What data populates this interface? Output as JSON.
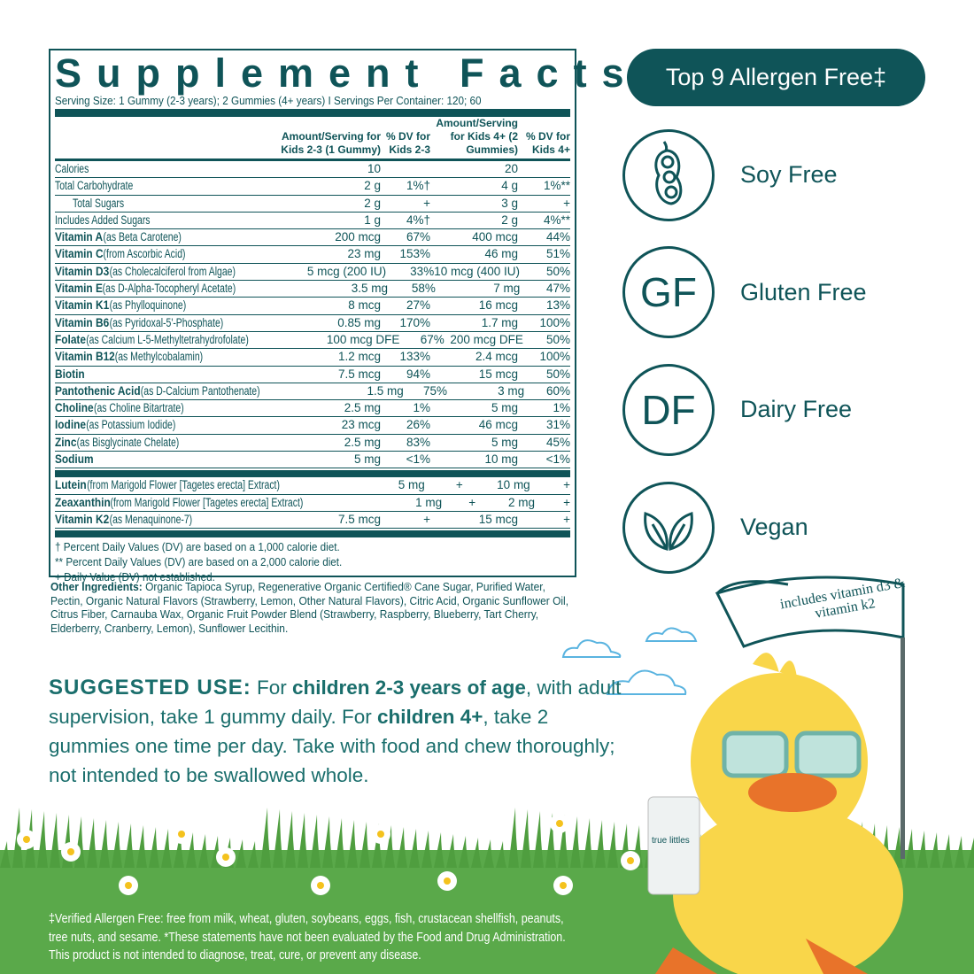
{
  "facts": {
    "title": "Supplement Facts",
    "serving": "Serving Size: 1 Gummy (2-3 years); 2 Gummies (4+ years)  I Servings Per Container: 120; 60",
    "headers": [
      "Amount/Serving for Kids 2-3 (1 Gummy)",
      "% DV for Kids 2-3",
      "Amount/Serving for Kids 4+ (2 Gummies)",
      "% DV for Kids 4+"
    ],
    "rows": [
      {
        "bold": "",
        "name": "Calories",
        "a1": "10",
        "d1": "",
        "a2": "20",
        "d2": ""
      },
      {
        "bold": "",
        "name": "Total Carbohydrate",
        "a1": "2 g",
        "d1": "1%†",
        "a2": "4 g",
        "d2": "1%**"
      },
      {
        "bold": "",
        "name": "Total Sugars",
        "a1": "2 g",
        "d1": "+",
        "a2": "3 g",
        "d2": "+"
      },
      {
        "bold": "",
        "name": "Includes Added Sugars",
        "a1": "1 g",
        "d1": "4%†",
        "a2": "2 g",
        "d2": "4%**"
      },
      {
        "bold": "Vitamin A",
        "name": " (as Beta Carotene)",
        "a1": "200 mcg",
        "d1": "67%",
        "a2": "400 mcg",
        "d2": "44%"
      },
      {
        "bold": "Vitamin C",
        "name": " (from Ascorbic Acid)",
        "a1": "23 mg",
        "d1": "153%",
        "a2": "46 mg",
        "d2": "51%"
      },
      {
        "bold": "Vitamin D3",
        "name": " (as Cholecalciferol from Algae)",
        "a1": "5 mcg (200 IU)",
        "d1": "33%",
        "a2": "10 mcg (400 IU)",
        "d2": "50%"
      },
      {
        "bold": "Vitamin E",
        "name": " (as D-Alpha-Tocopheryl Acetate)",
        "a1": "3.5 mg",
        "d1": "58%",
        "a2": "7 mg",
        "d2": "47%"
      },
      {
        "bold": "Vitamin K1",
        "name": " (as Phylloquinone)",
        "a1": "8 mcg",
        "d1": "27%",
        "a2": "16 mcg",
        "d2": "13%"
      },
      {
        "bold": "Vitamin B6",
        "name": " (as Pyridoxal-5'-Phosphate)",
        "a1": "0.85 mg",
        "d1": "170%",
        "a2": "1.7 mg",
        "d2": "100%"
      },
      {
        "bold": "Folate",
        "name": " (as Calcium L-5-Methyltetrahydrofolate)",
        "a1": "100 mcg DFE",
        "d1": "67%",
        "a2": "200 mcg DFE",
        "d2": "50%"
      },
      {
        "bold": "Vitamin B12",
        "name": " (as Methylcobalamin)",
        "a1": "1.2 mcg",
        "d1": "133%",
        "a2": "2.4 mcg",
        "d2": "100%"
      },
      {
        "bold": "Biotin",
        "name": "",
        "a1": "7.5 mcg",
        "d1": "94%",
        "a2": "15 mcg",
        "d2": "50%"
      },
      {
        "bold": "Pantothenic Acid",
        "name": " (as D-Calcium Pantothenate)",
        "a1": "1.5 mg",
        "d1": "75%",
        "a2": "3 mg",
        "d2": "60%"
      },
      {
        "bold": "Choline",
        "name": " (as Choline Bitartrate)",
        "a1": "2.5 mg",
        "d1": "1%",
        "a2": "5 mg",
        "d2": "1%"
      },
      {
        "bold": "Iodine",
        "name": " (as Potassium Iodide)",
        "a1": "23 mcg",
        "d1": "26%",
        "a2": "46 mcg",
        "d2": "31%"
      },
      {
        "bold": "Zinc",
        "name": " (as Bisglycinate Chelate)",
        "a1": "2.5 mg",
        "d1": "83%",
        "a2": "5 mg",
        "d2": "45%"
      },
      {
        "bold": "Sodium",
        "name": "",
        "a1": "5 mg",
        "d1": "<1%",
        "a2": "10 mg",
        "d2": "<1%"
      }
    ],
    "rows2": [
      {
        "bold": "Lutein",
        "name": " (from Marigold Flower [Tagetes erecta] Extract)",
        "a1": "5 mg",
        "d1": "+",
        "a2": "10 mg",
        "d2": "+"
      },
      {
        "bold": "Zeaxanthin",
        "name": " (from Marigold Flower [Tagetes erecta] Extract)",
        "a1": "1 mg",
        "d1": "+",
        "a2": "2 mg",
        "d2": "+"
      },
      {
        "bold": "Vitamin K2",
        "name": " (as Menaquinone-7)",
        "a1": "7.5 mcg",
        "d1": "+",
        "a2": "15 mcg",
        "d2": "+"
      }
    ],
    "footnotes": [
      "† Percent Daily Values (DV) are based on a 1,000 calorie diet.",
      "** Percent Daily Values (DV) are based on a 2,000 calorie diet.",
      "+ Daily Value (DV) not established."
    ]
  },
  "other_ingredients": {
    "label": "Other Ingredients:",
    "text": " Organic Tapioca Syrup, Regenerative Organic Certified® Cane Sugar, Purified Water, Pectin, Organic Natural Flavors (Strawberry, Lemon, Other Natural Flavors), Citric Acid, Organic Sunflower Oil, Citrus Fiber,  Carnauba Wax, Organic Fruit Powder Blend (Strawberry, Raspberry, Blueberry, Tart Cherry, Elderberry, Cranberry, Lemon), Sunflower Lecithin."
  },
  "allergen": {
    "pill": "Top 9 Allergen Free‡",
    "badges": [
      {
        "icon": "soybean-icon",
        "text": "",
        "label": "Soy Free"
      },
      {
        "icon": "gf-icon",
        "text": "GF",
        "label": "Gluten Free"
      },
      {
        "icon": "df-icon",
        "text": "DF",
        "label": "Dairy Free"
      },
      {
        "icon": "leaf-icon",
        "text": "",
        "label": "Vegan"
      }
    ]
  },
  "banner": "includes vitamin d3 & vitamin k2",
  "bottle_brand": "true littles",
  "suggested_use": {
    "heading": "SUGGESTED USE:",
    "t1": " For ",
    "b1": "children 2-3 years of age",
    "t2": ", with adult supervision, take 1 gummy daily. For ",
    "b2": "children 4+",
    "t3": ", take 2 gummies one time per day. Take with food and chew thoroughly; not intended to be swallowed whole."
  },
  "disclaimer": "‡Verified Allergen Free: free from milk, wheat, gluten, soybeans, eggs, fish, crustacean shellfish, peanuts, tree nuts, and sesame.  *These statements have not been evaluated by the Food and Drug Administration. This product is not intended to diagnose, treat, cure, or prevent any disease.",
  "colors": {
    "teal": "#0f5458",
    "grass": "#5aa94a",
    "duck": "#f9d64a",
    "beak": "#e8732a"
  }
}
